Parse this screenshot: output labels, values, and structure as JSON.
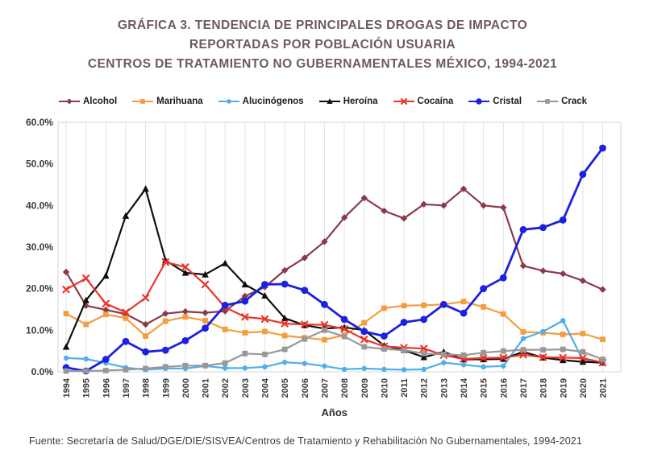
{
  "title": {
    "line1": "GRÁFICA 3. TENDENCIA DE PRINCIPALES DROGAS DE IMPACTO",
    "line2": "REPORTADAS POR POBLACIÓN USUARIA",
    "line3": "CENTROS DE TRATAMIENTO NO GUBERNAMENTALES MÉXICO, 1994-2021"
  },
  "source_note": "Fuente: Secretaría de Salud/DGE/DIE/SISVEA/Centros de Tratamiento y Rehabilitación No Gubernamentales, 1994-2021",
  "chart_data": {
    "type": "line",
    "title": "GRÁFICA 3. TENDENCIA DE PRINCIPALES DROGAS DE IMPACTO REPORTADAS POR POBLACIÓN USUARIA, CENTROS DE TRATAMIENTO NO GUBERNAMENTALES MÉXICO, 1994-2021",
    "xlabel": "Años",
    "ylabel": "",
    "ylim": [
      0,
      60
    ],
    "ytick_step": 10,
    "ytick_labels": [
      "0.0%",
      "10.0%",
      "20.0%",
      "30.0%",
      "40.0%",
      "50.0%",
      "60.0%"
    ],
    "grid": "vertical-only",
    "legend_position": "top",
    "categories": [
      "1994",
      "1995",
      "1996",
      "1997",
      "1998",
      "1999",
      "2000",
      "2001",
      "2002",
      "2003",
      "2004",
      "2005",
      "2006",
      "2007",
      "2008",
      "2009",
      "2010",
      "2011",
      "2012",
      "2013",
      "2014",
      "2015",
      "2016",
      "2017",
      "2018",
      "2019",
      "2020",
      "2021"
    ],
    "series": [
      {
        "name": "Alcohol",
        "color": "#8b3a4a",
        "marker": "diamond",
        "marker_size": 4.2,
        "line_width": 2.2,
        "values": [
          24.0,
          15.9,
          14.9,
          13.9,
          11.4,
          14.0,
          14.5,
          14.2,
          14.6,
          18.2,
          20.4,
          24.4,
          27.4,
          31.3,
          37.1,
          41.8,
          38.7,
          36.9,
          40.3,
          40.0,
          44.0,
          40.0,
          39.5,
          25.5,
          24.3,
          23.6,
          21.9,
          19.8
        ]
      },
      {
        "name": "Marihuana",
        "color": "#f49d3f",
        "marker": "square",
        "marker_size": 3.4,
        "line_width": 2.2,
        "values": [
          14.0,
          11.4,
          13.8,
          12.9,
          8.6,
          12.2,
          13.2,
          12.3,
          10.2,
          9.4,
          9.7,
          8.7,
          8.2,
          7.7,
          8.8,
          11.8,
          15.3,
          15.9,
          16.0,
          16.2,
          16.9,
          15.6,
          13.9,
          9.6,
          9.4,
          9.0,
          9.2,
          7.8
        ]
      },
      {
        "name": "Alucinógenos",
        "color": "#4fb0ea",
        "marker": "circle",
        "marker_size": 3.2,
        "line_width": 2.2,
        "values": [
          3.3,
          3.1,
          2.1,
          1.0,
          0.5,
          0.8,
          0.8,
          1.4,
          0.9,
          0.9,
          1.2,
          2.3,
          2.0,
          1.4,
          0.6,
          0.8,
          0.6,
          0.5,
          0.6,
          2.2,
          1.7,
          1.2,
          1.4,
          8.0,
          9.7,
          12.3,
          2.8,
          2.3
        ]
      },
      {
        "name": "Heroína",
        "color": "#0f0f0f",
        "marker": "triangle",
        "marker_size": 4.5,
        "line_width": 2.2,
        "values": [
          6.0,
          17.2,
          23.1,
          37.5,
          44.0,
          26.8,
          23.8,
          23.4,
          26.1,
          21.0,
          18.3,
          12.9,
          11.2,
          10.4,
          10.7,
          10.0,
          6.3,
          5.2,
          3.5,
          4.8,
          3.0,
          3.0,
          3.1,
          4.8,
          3.4,
          2.8,
          2.4,
          2.2
        ]
      },
      {
        "name": "Cocaína",
        "color": "#ea352b",
        "marker": "x",
        "marker_size": 3.6,
        "line_width": 2.2,
        "values": [
          19.8,
          22.5,
          16.4,
          14.3,
          17.8,
          26.4,
          25.2,
          21.0,
          15.5,
          13.2,
          12.7,
          11.6,
          11.4,
          11.3,
          10.3,
          7.8,
          6.1,
          5.8,
          5.6,
          4.0,
          3.1,
          3.3,
          3.4,
          4.1,
          3.5,
          3.4,
          3.3,
          2.2
        ]
      },
      {
        "name": "Cristal",
        "color": "#1c20e0",
        "marker": "circle",
        "marker_size": 4.4,
        "line_width": 2.8,
        "values": [
          1.0,
          0.2,
          3.0,
          7.3,
          4.8,
          5.2,
          7.5,
          10.5,
          16.0,
          17.0,
          21.0,
          21.1,
          19.6,
          16.2,
          12.6,
          9.7,
          8.6,
          11.9,
          12.6,
          16.2,
          14.1,
          20.0,
          22.6,
          34.2,
          34.7,
          36.5,
          47.5,
          53.8
        ]
      },
      {
        "name": "Crack",
        "color": "#989898",
        "marker": "square",
        "marker_size": 3.4,
        "line_width": 2.2,
        "values": [
          0.2,
          0.2,
          0.3,
          0.5,
          0.8,
          1.2,
          1.5,
          1.5,
          2.1,
          4.4,
          4.2,
          5.4,
          7.9,
          10.0,
          8.5,
          6.0,
          5.5,
          5.2,
          4.4,
          4.2,
          4.0,
          4.6,
          5.0,
          5.3,
          5.3,
          5.4,
          4.8,
          3.0
        ]
      }
    ],
    "style": {
      "gridline_color": "#e2e2e2",
      "plot_border_color": "#d6d6d6",
      "tick_label_color": "#3a3a3a",
      "title_color": "#6d5a5f"
    }
  }
}
